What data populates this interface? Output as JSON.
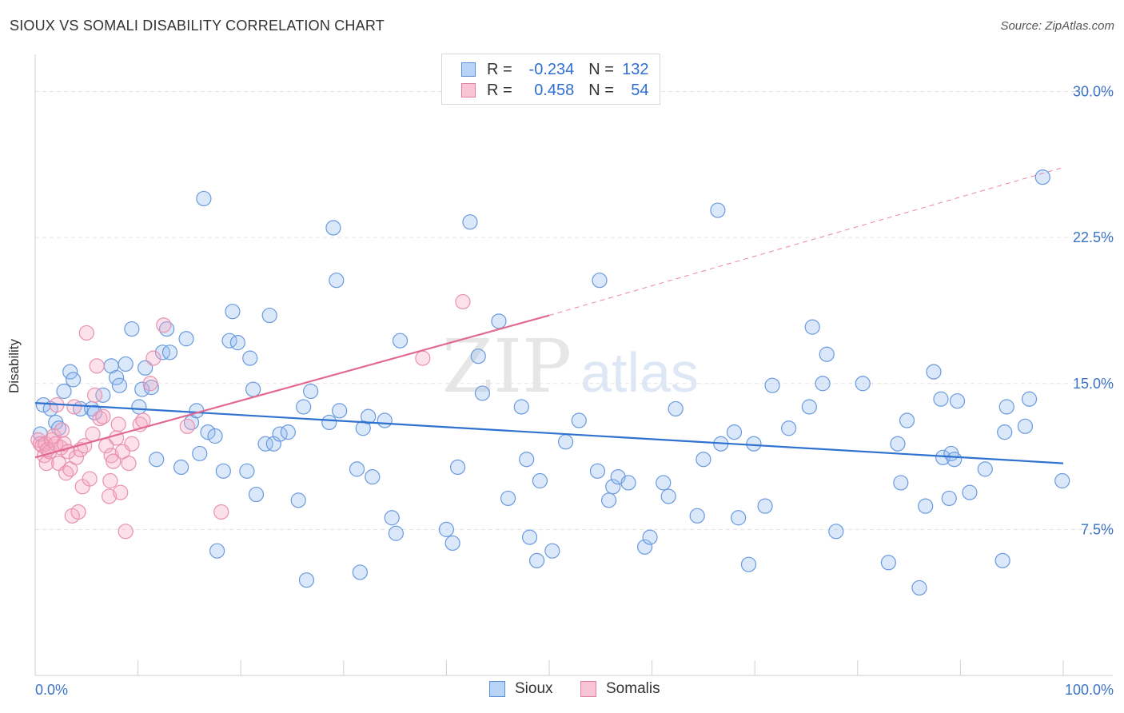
{
  "title": "SIOUX VS SOMALI DISABILITY CORRELATION CHART",
  "source": "Source: ZipAtlas.com",
  "watermark": {
    "zip": "ZIP",
    "atlas": "atlas"
  },
  "legend": {
    "rows": [
      {
        "r_label": "R =",
        "r_value": "-0.234",
        "n_label": "N =",
        "n_value": "132",
        "fill": "#b8d3f5",
        "stroke": "#5b8fd6"
      },
      {
        "r_label": "R =",
        "r_value": "0.458",
        "n_label": "N =",
        "n_value": "54",
        "fill": "#f9c4d4",
        "stroke": "#e07fa1"
      }
    ]
  },
  "bottom_legend": [
    {
      "label": "Sioux",
      "fill": "#b8d3f5",
      "stroke": "#5b8fd6"
    },
    {
      "label": "Somalis",
      "fill": "#f9c4d4",
      "stroke": "#e07fa1"
    }
  ],
  "colors": {
    "sioux_fill": "rgba(150,190,240,0.35)",
    "sioux_stroke": "#6a9ade",
    "sioux_line": "#2f72cf",
    "somali_fill": "rgba(245,170,195,0.35)",
    "somali_stroke": "#e891b0",
    "somali_line": "#e2698f",
    "tick_text": "#3b72c4",
    "grid": "#e3e3e3"
  },
  "chart_data": {
    "type": "scatter",
    "title": "SIOUX VS SOMALI DISABILITY CORRELATION CHART",
    "xlabel": "",
    "ylabel": "Disability",
    "xlim": [
      0,
      100
    ],
    "ylim": [
      0,
      31.5
    ],
    "x_tick_labels": [
      {
        "value": 0,
        "label": "0.0%"
      },
      {
        "value": 100,
        "label": "100.0%"
      }
    ],
    "y_tick_labels": [
      {
        "value": 7.5,
        "label": "7.5%"
      },
      {
        "value": 15.0,
        "label": "15.0%"
      },
      {
        "value": 22.5,
        "label": "22.5%"
      },
      {
        "value": 30.0,
        "label": "30.0%"
      }
    ],
    "grid": "horizontal dashed",
    "legend_position": "top-center",
    "series": [
      {
        "name": "Sioux",
        "trend": {
          "x": [
            0,
            100
          ],
          "y": [
            14.0,
            10.9
          ]
        },
        "points": [
          [
            0.5,
            12.4
          ],
          [
            0.8,
            13.9
          ],
          [
            1.5,
            13.7
          ],
          [
            2.0,
            13.0
          ],
          [
            2.3,
            12.7
          ],
          [
            2.8,
            14.6
          ],
          [
            3.4,
            15.6
          ],
          [
            3.7,
            15.2
          ],
          [
            4.4,
            13.7
          ],
          [
            5.5,
            13.7
          ],
          [
            5.8,
            13.5
          ],
          [
            6.6,
            14.4
          ],
          [
            7.4,
            15.9
          ],
          [
            7.9,
            15.3
          ],
          [
            8.2,
            14.9
          ],
          [
            8.8,
            16.0
          ],
          [
            9.4,
            17.8
          ],
          [
            10.1,
            13.8
          ],
          [
            10.4,
            14.7
          ],
          [
            10.7,
            15.8
          ],
          [
            11.3,
            14.8
          ],
          [
            11.8,
            11.1
          ],
          [
            12.4,
            16.6
          ],
          [
            12.8,
            17.8
          ],
          [
            13.1,
            16.6
          ],
          [
            14.2,
            10.7
          ],
          [
            14.7,
            17.3
          ],
          [
            15.2,
            13.0
          ],
          [
            15.7,
            13.6
          ],
          [
            16.0,
            11.4
          ],
          [
            16.4,
            24.5
          ],
          [
            16.8,
            12.5
          ],
          [
            17.5,
            12.3
          ],
          [
            17.7,
            6.4
          ],
          [
            18.3,
            10.5
          ],
          [
            18.9,
            17.2
          ],
          [
            19.2,
            18.7
          ],
          [
            19.7,
            17.1
          ],
          [
            20.6,
            10.5
          ],
          [
            20.9,
            16.3
          ],
          [
            21.2,
            14.7
          ],
          [
            21.5,
            9.3
          ],
          [
            22.4,
            11.9
          ],
          [
            22.8,
            18.5
          ],
          [
            23.2,
            11.9
          ],
          [
            23.8,
            12.4
          ],
          [
            24.6,
            12.5
          ],
          [
            25.6,
            9.0
          ],
          [
            26.1,
            13.8
          ],
          [
            26.4,
            4.9
          ],
          [
            26.8,
            14.6
          ],
          [
            28.6,
            13.0
          ],
          [
            29.0,
            23.0
          ],
          [
            29.3,
            20.3
          ],
          [
            29.6,
            13.6
          ],
          [
            31.3,
            10.6
          ],
          [
            31.6,
            5.3
          ],
          [
            31.9,
            12.7
          ],
          [
            32.4,
            13.3
          ],
          [
            32.8,
            10.2
          ],
          [
            34.0,
            13.1
          ],
          [
            34.7,
            8.1
          ],
          [
            35.1,
            7.3
          ],
          [
            35.5,
            17.2
          ],
          [
            40.0,
            7.5
          ],
          [
            40.6,
            6.8
          ],
          [
            41.1,
            10.7
          ],
          [
            42.3,
            23.3
          ],
          [
            43.1,
            16.4
          ],
          [
            43.5,
            14.5
          ],
          [
            45.1,
            18.2
          ],
          [
            46.0,
            9.1
          ],
          [
            47.3,
            13.8
          ],
          [
            47.8,
            11.1
          ],
          [
            48.1,
            7.1
          ],
          [
            48.8,
            5.9
          ],
          [
            49.1,
            10.0
          ],
          [
            50.3,
            6.4
          ],
          [
            51.6,
            12.0
          ],
          [
            52.9,
            13.1
          ],
          [
            54.7,
            10.5
          ],
          [
            54.9,
            20.3
          ],
          [
            55.8,
            9.0
          ],
          [
            56.2,
            9.7
          ],
          [
            56.7,
            10.2
          ],
          [
            57.7,
            9.9
          ],
          [
            59.3,
            6.6
          ],
          [
            59.8,
            7.1
          ],
          [
            61.1,
            9.9
          ],
          [
            61.6,
            9.2
          ],
          [
            62.3,
            13.7
          ],
          [
            64.4,
            8.2
          ],
          [
            65.0,
            11.1
          ],
          [
            66.4,
            23.9
          ],
          [
            66.7,
            11.9
          ],
          [
            68.0,
            12.5
          ],
          [
            68.4,
            8.1
          ],
          [
            69.4,
            5.7
          ],
          [
            69.9,
            11.9
          ],
          [
            71.0,
            8.7
          ],
          [
            71.7,
            14.9
          ],
          [
            73.3,
            12.7
          ],
          [
            75.3,
            13.8
          ],
          [
            75.6,
            17.9
          ],
          [
            76.6,
            15.0
          ],
          [
            77.0,
            16.5
          ],
          [
            77.9,
            7.4
          ],
          [
            80.5,
            15.0
          ],
          [
            83.0,
            5.8
          ],
          [
            83.9,
            11.9
          ],
          [
            84.2,
            9.9
          ],
          [
            84.8,
            13.1
          ],
          [
            86.0,
            4.5
          ],
          [
            86.6,
            8.7
          ],
          [
            87.4,
            15.6
          ],
          [
            88.1,
            14.2
          ],
          [
            88.3,
            11.2
          ],
          [
            88.9,
            9.1
          ],
          [
            89.1,
            11.4
          ],
          [
            89.4,
            11.1
          ],
          [
            89.7,
            14.1
          ],
          [
            90.9,
            9.4
          ],
          [
            92.4,
            10.6
          ],
          [
            94.1,
            5.9
          ],
          [
            94.3,
            12.5
          ],
          [
            94.5,
            13.8
          ],
          [
            96.3,
            12.8
          ],
          [
            96.7,
            14.2
          ],
          [
            98.0,
            25.6
          ],
          [
            99.9,
            10.0
          ]
        ]
      },
      {
        "name": "Somalis",
        "trend": {
          "x": [
            0,
            50
          ],
          "y": [
            11.2,
            18.5
          ]
        },
        "trend_extension": {
          "x": [
            50,
            100
          ],
          "y": [
            18.5,
            26.1
          ]
        },
        "points": [
          [
            0.3,
            12.1
          ],
          [
            0.5,
            11.9
          ],
          [
            0.7,
            11.8
          ],
          [
            0.9,
            11.3
          ],
          [
            1.0,
            11.9
          ],
          [
            1.1,
            10.9
          ],
          [
            1.2,
            11.6
          ],
          [
            1.4,
            11.5
          ],
          [
            1.6,
            12.1
          ],
          [
            1.8,
            12.3
          ],
          [
            2.0,
            11.9
          ],
          [
            2.1,
            13.9
          ],
          [
            2.3,
            10.9
          ],
          [
            2.5,
            11.7
          ],
          [
            2.6,
            12.6
          ],
          [
            2.8,
            11.9
          ],
          [
            3.0,
            10.4
          ],
          [
            3.2,
            11.5
          ],
          [
            3.4,
            10.6
          ],
          [
            3.6,
            8.2
          ],
          [
            3.8,
            13.8
          ],
          [
            4.0,
            11.2
          ],
          [
            4.2,
            8.4
          ],
          [
            4.4,
            11.6
          ],
          [
            4.6,
            9.7
          ],
          [
            4.8,
            11.8
          ],
          [
            5.0,
            17.6
          ],
          [
            5.3,
            10.1
          ],
          [
            5.6,
            12.4
          ],
          [
            5.8,
            14.4
          ],
          [
            6.0,
            15.9
          ],
          [
            6.3,
            13.2
          ],
          [
            6.6,
            13.3
          ],
          [
            6.9,
            11.8
          ],
          [
            7.2,
            9.2
          ],
          [
            7.3,
            10.0
          ],
          [
            7.4,
            11.3
          ],
          [
            7.6,
            11.0
          ],
          [
            7.9,
            12.2
          ],
          [
            8.1,
            12.9
          ],
          [
            8.3,
            9.4
          ],
          [
            8.5,
            11.5
          ],
          [
            8.8,
            7.4
          ],
          [
            9.1,
            10.9
          ],
          [
            9.4,
            11.9
          ],
          [
            10.2,
            12.9
          ],
          [
            10.5,
            13.1
          ],
          [
            11.2,
            15.0
          ],
          [
            11.5,
            16.3
          ],
          [
            12.5,
            18.0
          ],
          [
            14.8,
            12.8
          ],
          [
            18.1,
            8.4
          ],
          [
            37.7,
            16.3
          ],
          [
            41.6,
            19.2
          ]
        ]
      }
    ]
  },
  "ylabel": "Disability"
}
